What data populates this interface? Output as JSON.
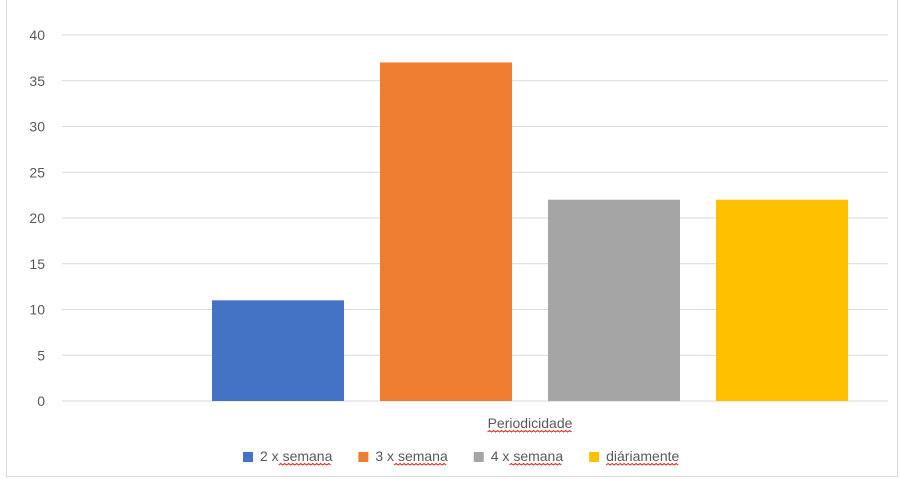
{
  "chart_data": {
    "type": "bar",
    "title": "",
    "xlabel": "Periodicidade",
    "ylabel": "",
    "ylim": [
      0,
      40
    ],
    "yticks": [
      0,
      5,
      10,
      15,
      20,
      25,
      30,
      35,
      40
    ],
    "grid": true,
    "legend_position": "bottom",
    "category": "Periodicidade",
    "series": [
      {
        "name": "2 x semana",
        "value": 11,
        "color": "#4472c4"
      },
      {
        "name": "3 x semana",
        "value": 37,
        "color": "#ed7d31"
      },
      {
        "name": "4 x semana",
        "value": 22,
        "color": "#a5a5a5"
      },
      {
        "name": "diáriamente",
        "value": 22,
        "color": "#ffc000"
      }
    ]
  }
}
